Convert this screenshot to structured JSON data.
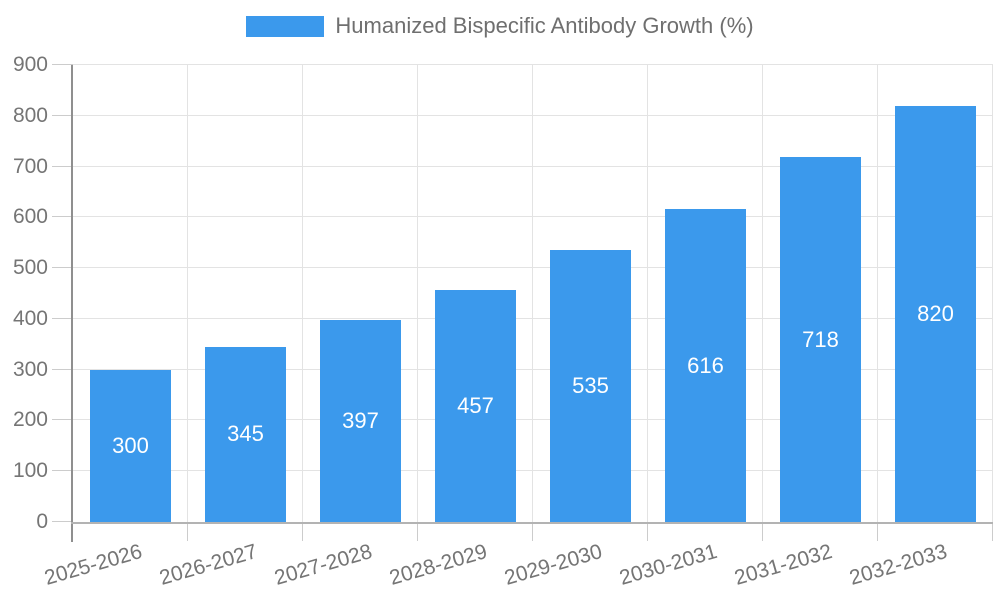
{
  "legend": {
    "label": "Humanized Bispecific Antibody Growth (%)"
  },
  "chart_data": {
    "type": "bar",
    "title": "Humanized Bispecific Antibody Growth (%)",
    "categories": [
      "2025-2026",
      "2026-2027",
      "2027-2028",
      "2028-2029",
      "2029-2030",
      "2030-2031",
      "2031-2032",
      "2032-2033"
    ],
    "series": [
      {
        "name": "Humanized Bispecific Antibody Growth (%)",
        "values": [
          300,
          345,
          397,
          457,
          535,
          616,
          718,
          820
        ]
      }
    ],
    "xlabel": "",
    "ylabel": "",
    "ylim": [
      0,
      900
    ],
    "yticks": [
      0,
      100,
      200,
      300,
      400,
      500,
      600,
      700,
      800,
      900
    ],
    "grid": true,
    "legend_position": "top",
    "bar_color": "#3B99EC",
    "value_label_position": "inside-center",
    "value_label_color": "#ffffff",
    "x_tick_rotation": -16
  },
  "colors": {
    "bar": "#3B99EC",
    "grid": "#e3e3e3",
    "tick": "#cccccc",
    "axis_y": "#8f8f8f",
    "axis_x": "#b3b3b3",
    "tick_text": "#757575",
    "legend_text": "#6f6f6f",
    "background": "#ffffff"
  }
}
